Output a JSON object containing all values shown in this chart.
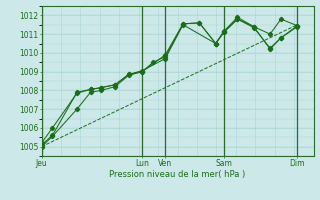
{
  "xlabel": "Pression niveau de la mer( hPa )",
  "ylim": [
    1004.5,
    1012.5
  ],
  "yticks": [
    1005,
    1006,
    1007,
    1008,
    1009,
    1010,
    1011,
    1012
  ],
  "bg_color": "#cce8e8",
  "grid_color": "#aad4d4",
  "line_color": "#1a6e1a",
  "dark_line_color": "#0a4a0a",
  "xtick_labels": [
    "Jeu",
    "Lun",
    "Ven",
    "Sam",
    "Dim"
  ],
  "xtick_positions": [
    0.0,
    0.37,
    0.455,
    0.67,
    0.94
  ],
  "vline_positions": [
    0.0,
    0.37,
    0.455,
    0.67,
    0.94
  ],
  "series1_x": [
    0.0,
    0.04,
    0.13,
    0.18,
    0.22,
    0.27,
    0.32,
    0.37,
    0.41,
    0.455,
    0.52,
    0.58,
    0.64,
    0.67,
    0.72,
    0.78,
    0.84,
    0.88,
    0.94
  ],
  "series1_y": [
    1005.0,
    1005.55,
    1007.0,
    1007.9,
    1008.0,
    1008.2,
    1008.8,
    1009.0,
    1009.5,
    1009.8,
    1011.55,
    1011.6,
    1010.5,
    1011.1,
    1011.8,
    1011.4,
    1011.0,
    1011.8,
    1011.45
  ],
  "series2_x": [
    0.0,
    0.04,
    0.13,
    0.18,
    0.22,
    0.27,
    0.32,
    0.37,
    0.455,
    0.52,
    0.58,
    0.64,
    0.67,
    0.72,
    0.78,
    0.84,
    0.88,
    0.94
  ],
  "series2_y": [
    1005.1,
    1005.6,
    1007.9,
    1008.05,
    1008.15,
    1008.3,
    1008.85,
    1009.0,
    1009.9,
    1011.55,
    1011.6,
    1010.5,
    1011.15,
    1011.9,
    1011.4,
    1010.2,
    1010.8,
    1011.45
  ],
  "series3_x": [
    0.0,
    0.04,
    0.13,
    0.18,
    0.22,
    0.27,
    0.32,
    0.37,
    0.455,
    0.52,
    0.64,
    0.67,
    0.72,
    0.78,
    0.84,
    0.88,
    0.94
  ],
  "series3_y": [
    1005.2,
    1006.0,
    1007.85,
    1008.05,
    1008.15,
    1008.3,
    1008.85,
    1009.05,
    1009.7,
    1011.5,
    1010.5,
    1011.1,
    1011.8,
    1011.35,
    1010.25,
    1010.8,
    1011.4
  ],
  "trend_x": [
    0.0,
    0.94
  ],
  "trend_y": [
    1005.0,
    1011.5
  ]
}
